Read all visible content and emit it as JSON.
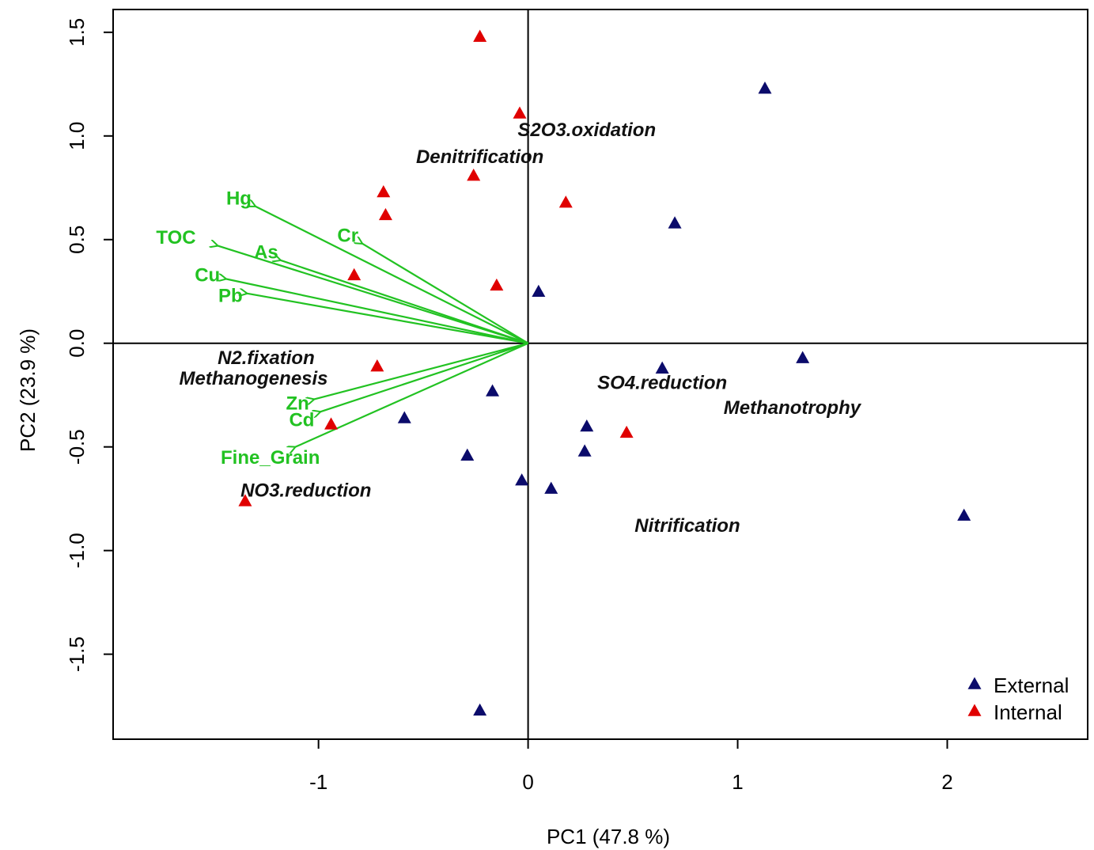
{
  "chart_data": {
    "type": "scatter",
    "subtype": "pca-biplot",
    "xlabel": "PC1 (47.8 %)",
    "ylabel": "PC2 (23.9 %)",
    "xlim": [
      -1.98,
      2.67
    ],
    "ylim": [
      -1.91,
      1.61
    ],
    "x_ticks": [
      -1,
      0,
      1,
      2
    ],
    "x_tick_labels": [
      "-1",
      "0",
      "1",
      "2"
    ],
    "y_ticks": [
      -1.5,
      -1.0,
      -0.5,
      0.0,
      0.5,
      1.0,
      1.5
    ],
    "y_tick_labels": [
      "-1.5",
      "-1.0",
      "-0.5",
      "0.0",
      "0.5",
      "1.0",
      "1.5"
    ],
    "reference_lines": {
      "x": 0,
      "y": 0
    },
    "grid": false,
    "legend_position": "bottom-right",
    "colors": {
      "External": "#0b0b6b",
      "Internal": "#e00000",
      "vectors": "#22c222"
    },
    "series": [
      {
        "name": "External",
        "marker": "triangle",
        "color": "#0b0b6b",
        "points": [
          {
            "x": 1.13,
            "y": 1.23
          },
          {
            "x": 0.7,
            "y": 0.58
          },
          {
            "x": 0.05,
            "y": 0.25
          },
          {
            "x": 1.31,
            "y": -0.07
          },
          {
            "x": 0.64,
            "y": -0.12
          },
          {
            "x": -0.17,
            "y": -0.23
          },
          {
            "x": -0.59,
            "y": -0.36
          },
          {
            "x": 0.28,
            "y": -0.4
          },
          {
            "x": 0.27,
            "y": -0.52
          },
          {
            "x": -0.29,
            "y": -0.54
          },
          {
            "x": -0.03,
            "y": -0.66
          },
          {
            "x": 0.11,
            "y": -0.7
          },
          {
            "x": 2.08,
            "y": -0.83
          },
          {
            "x": -0.23,
            "y": -1.77
          }
        ]
      },
      {
        "name": "Internal",
        "marker": "triangle",
        "color": "#e00000",
        "points": [
          {
            "x": -0.23,
            "y": 1.48
          },
          {
            "x": -0.04,
            "y": 1.11
          },
          {
            "x": -0.26,
            "y": 0.81
          },
          {
            "x": -0.69,
            "y": 0.73
          },
          {
            "x": -0.68,
            "y": 0.62
          },
          {
            "x": 0.18,
            "y": 0.68
          },
          {
            "x": -0.83,
            "y": 0.33
          },
          {
            "x": -0.15,
            "y": 0.28
          },
          {
            "x": -0.72,
            "y": -0.11
          },
          {
            "x": -0.94,
            "y": -0.39
          },
          {
            "x": 0.47,
            "y": -0.43
          },
          {
            "x": -1.35,
            "y": -0.76
          }
        ]
      }
    ],
    "vectors": [
      {
        "name": "Hg",
        "x": -1.3,
        "y": 0.66,
        "label_x": -1.38,
        "label_y": 0.7
      },
      {
        "name": "TOC",
        "x": -1.48,
        "y": 0.47,
        "label_x": -1.68,
        "label_y": 0.51
      },
      {
        "name": "As",
        "x": -1.18,
        "y": 0.4,
        "label_x": -1.25,
        "label_y": 0.44
      },
      {
        "name": "Cr",
        "x": -0.79,
        "y": 0.48,
        "label_x": -0.86,
        "label_y": 0.52
      },
      {
        "name": "Cu",
        "x": -1.44,
        "y": 0.31,
        "label_x": -1.53,
        "label_y": 0.33
      },
      {
        "name": "Pb",
        "x": -1.34,
        "y": 0.24,
        "label_x": -1.42,
        "label_y": 0.23
      },
      {
        "name": "Zn",
        "x": -1.02,
        "y": -0.27,
        "label_x": -1.1,
        "label_y": -0.29
      },
      {
        "name": "Cd",
        "x": -0.99,
        "y": -0.33,
        "label_x": -1.08,
        "label_y": -0.37
      },
      {
        "name": "Fine_Grain",
        "x": -1.11,
        "y": -0.5,
        "label_x": -1.23,
        "label_y": -0.55
      }
    ],
    "function_labels": [
      {
        "name": "S2O3.oxidation",
        "x": 0.28,
        "y": 1.03
      },
      {
        "name": "Denitrification",
        "x": -0.23,
        "y": 0.9
      },
      {
        "name": "N2.fixation",
        "x": -1.25,
        "y": -0.07
      },
      {
        "name": "Methanogenesis",
        "x": -1.31,
        "y": -0.17
      },
      {
        "name": "SO4.reduction",
        "x": 0.64,
        "y": -0.19
      },
      {
        "name": "Methanotrophy",
        "x": 1.26,
        "y": -0.31
      },
      {
        "name": "NO3.reduction",
        "x": -1.06,
        "y": -0.71
      },
      {
        "name": "Nitrification",
        "x": 0.76,
        "y": -0.88
      }
    ]
  }
}
